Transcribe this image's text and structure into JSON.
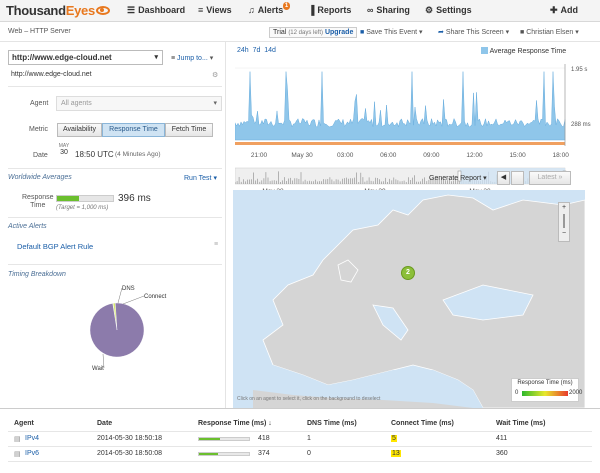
{
  "header": {
    "logo_text_thousand": "Thousand",
    "logo_text_eyes": "Eyes",
    "nav": [
      {
        "icon": "dashboard-icon",
        "glyph": "☰",
        "label": "Dashboard"
      },
      {
        "icon": "layers-icon",
        "glyph": "≡",
        "label": "Views"
      },
      {
        "icon": "bell-icon",
        "glyph": "♪",
        "label": "Alerts",
        "badge": "1"
      },
      {
        "icon": "bar-chart-icon",
        "glyph": "▐",
        "label": "Reports"
      },
      {
        "icon": "link-icon",
        "glyph": "∞",
        "label": "Sharing"
      },
      {
        "icon": "gear-icon",
        "glyph": "⚙",
        "label": "Settings"
      },
      {
        "icon": "plus-icon",
        "glyph": "✚",
        "label": "Add"
      }
    ]
  },
  "subheader": {
    "page_title": "Web – HTTP Server",
    "trial_label": "Trial",
    "trial_days": "(12 days left)",
    "upgrade": "Upgrade",
    "save_event": "Save This Event",
    "share_screen": "Share This Screen",
    "user": "Christian Elsen"
  },
  "left": {
    "test_select": "http://www.edge-cloud.net",
    "jump_to": "Jump to...",
    "url": "http://www.edge-cloud.net",
    "agent_label": "Agent",
    "agent_value": "All agents",
    "metric_label": "Metric",
    "metric_tabs": [
      "Availability",
      "Response Time",
      "Fetch Time"
    ],
    "metric_active": 1,
    "date_label": "Date",
    "date_month": "MAY",
    "date_day": "30",
    "date_time": "18:50 UTC",
    "date_ago": "(4 Minutes Ago)",
    "worldwide_title": "Worldwide Averages",
    "run_test": "Run Test",
    "response_label_1": "Response",
    "response_label_2": "Time",
    "response_value": "396 ms",
    "response_fraction": 0.396,
    "response_target": "(Target = 1,000 ms)",
    "active_alerts_title": "Active Alerts",
    "alert_rule": "Default BGP Alert Rule",
    "timing_title": "Timing Breakdown",
    "pie": {
      "slices": [
        {
          "name": "DNS",
          "value": 1,
          "color": "#6bbf2e"
        },
        {
          "name": "Connect",
          "value": 5,
          "color": "#d6e86a"
        },
        {
          "name": "Wait",
          "value": 386,
          "color": "#8c7bab"
        }
      ]
    }
  },
  "timeline": {
    "ranges": [
      "24h",
      "7d",
      "14d"
    ],
    "legend": "Average Response Time",
    "y_max_label": "1.95 s",
    "y_mid_label": "288 ms",
    "x_ticks": [
      "21:00",
      "May 30",
      "03:00",
      "06:00",
      "09:00",
      "12:00",
      "15:00",
      "18:00"
    ],
    "overview_ticks": [
      "May 28",
      "May 29",
      "May 30"
    ],
    "generate_report": "Generate Report",
    "latest": "Latest"
  },
  "map": {
    "cluster_count": "2",
    "footer_text": "Click on an agent to select it, click on the background to deselect",
    "legend_title": "Response Time (ms)",
    "legend_min": "0",
    "legend_max": "2000"
  },
  "table": {
    "headers": [
      "Agent",
      "Date",
      "Response Time (ms)",
      "DNS Time (ms)",
      "Connect Time (ms)",
      "Wait Time (ms)"
    ],
    "rows": [
      {
        "agent": "IPv4",
        "date": "2014-05-30 18:50:18",
        "response": "418",
        "response_fraction": 0.418,
        "dns": "1",
        "connect": "5",
        "wait": "411"
      },
      {
        "agent": "IPv6",
        "date": "2014-05-30 18:50:08",
        "response": "374",
        "response_fraction": 0.374,
        "dns": "0",
        "connect": "13",
        "wait": "360"
      }
    ]
  }
}
